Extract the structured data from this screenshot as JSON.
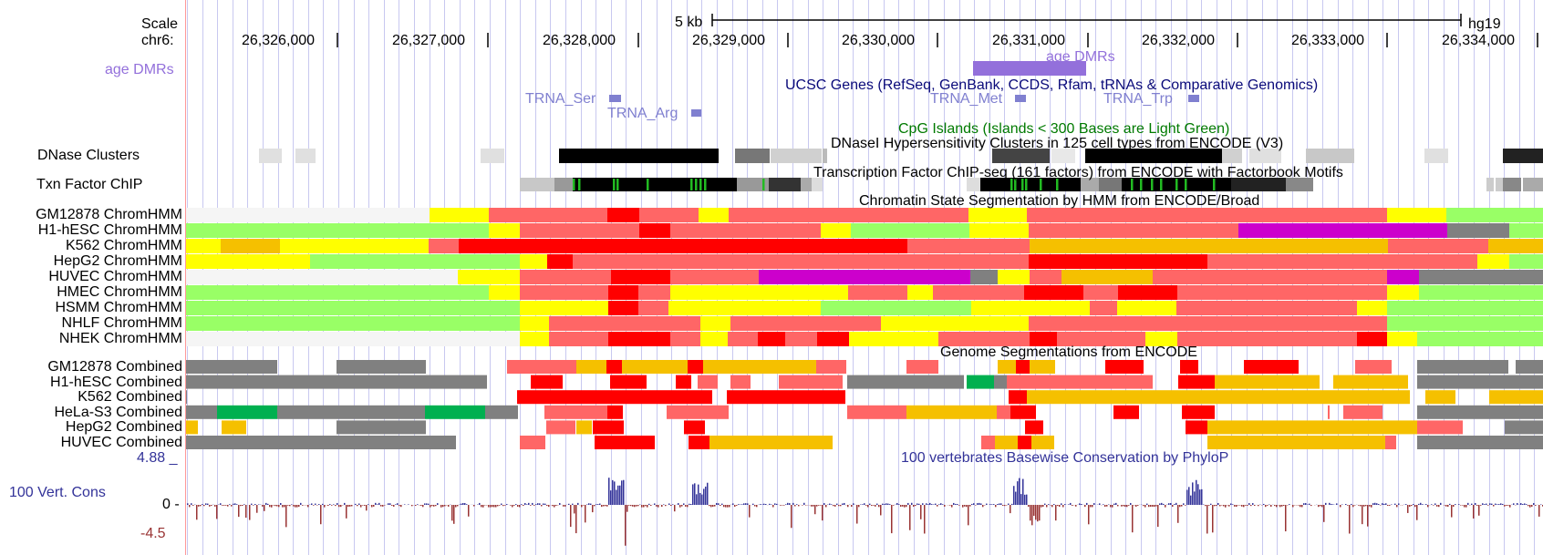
{
  "header": {
    "scale_label": "Scale",
    "chrom_label": "chr6:",
    "scale_bar_text": "5 kb",
    "assembly": "hg19",
    "positions": [
      "26,326,000",
      "26,327,000",
      "26,328,000",
      "26,329,000",
      "26,330,000",
      "26,331,000",
      "26,332,000",
      "26,333,000",
      "26,334,000"
    ]
  },
  "tracks": {
    "age_dmrs": {
      "side_label": "age DMRs",
      "feature_label": "age DMRs",
      "color": "#9370DB"
    },
    "ucsc_genes": {
      "title": "UCSC Genes (RefSeq, GenBank, CCDS, Rfam, tRNAs & Comparative Genomics)",
      "title_color": "#0a0a7a",
      "features": [
        {
          "name": "TRNA_Ser"
        },
        {
          "name": "TRNA_Arg"
        },
        {
          "name": "TRNA_Met"
        },
        {
          "name": "TRNA_Trp"
        }
      ],
      "feature_color": "#8080d0"
    },
    "cpg": {
      "title": "CpG Islands (Islands < 300 Bases are Light Green)",
      "color": "#007a00"
    },
    "dnase": {
      "side_label": "DNase Clusters",
      "title": "DNaseI Hypersensitivity Clusters in 125 cell types from ENCODE (V3)"
    },
    "txn": {
      "side_label": "Txn Factor ChIP",
      "title": "Transcription Factor ChIP-seq (161 factors) from ENCODE with Factorbook Motifs"
    },
    "chromhmm": {
      "title": "Chromatin State Segmentation by HMM from ENCODE/Broad",
      "rows": [
        "GM12878 ChromHMM",
        "H1-hESC ChromHMM",
        "K562 ChromHMM",
        "HepG2 ChromHMM",
        "HUVEC ChromHMM",
        "HMEC ChromHMM",
        "HSMM ChromHMM",
        "NHLF ChromHMM",
        "NHEK ChromHMM"
      ]
    },
    "combined": {
      "title": "Genome Segmentations from ENCODE",
      "rows": [
        "GM12878 Combined",
        "H1-hESC Combined",
        "K562 Combined",
        "HeLa-S3 Combined",
        "HepG2 Combined",
        "HUVEC Combined"
      ]
    },
    "phylop": {
      "title": "100 vertebrates Basewise Conservation by PhyloP",
      "side_label": "100 Vert. Cons",
      "max": "4.88 _",
      "zero": "0 -",
      "min": "-4.5",
      "title_color": "#333399"
    }
  },
  "colors": {
    "grid": "#c8c8f0",
    "left_rule": "#ff9999",
    "chrom_lightred": "#ff6666",
    "chrom_red": "#ff0000",
    "chrom_yellow": "#ffff00",
    "chrom_orange": "#f5c000",
    "chrom_green": "#99ff66",
    "chrom_grey": "#808080",
    "chrom_purple": "#cc00cc",
    "chrom_white": "#f5f5f5",
    "comb_green": "#00b050",
    "cons_pos": "#333399",
    "cons_neg": "#993333"
  }
}
